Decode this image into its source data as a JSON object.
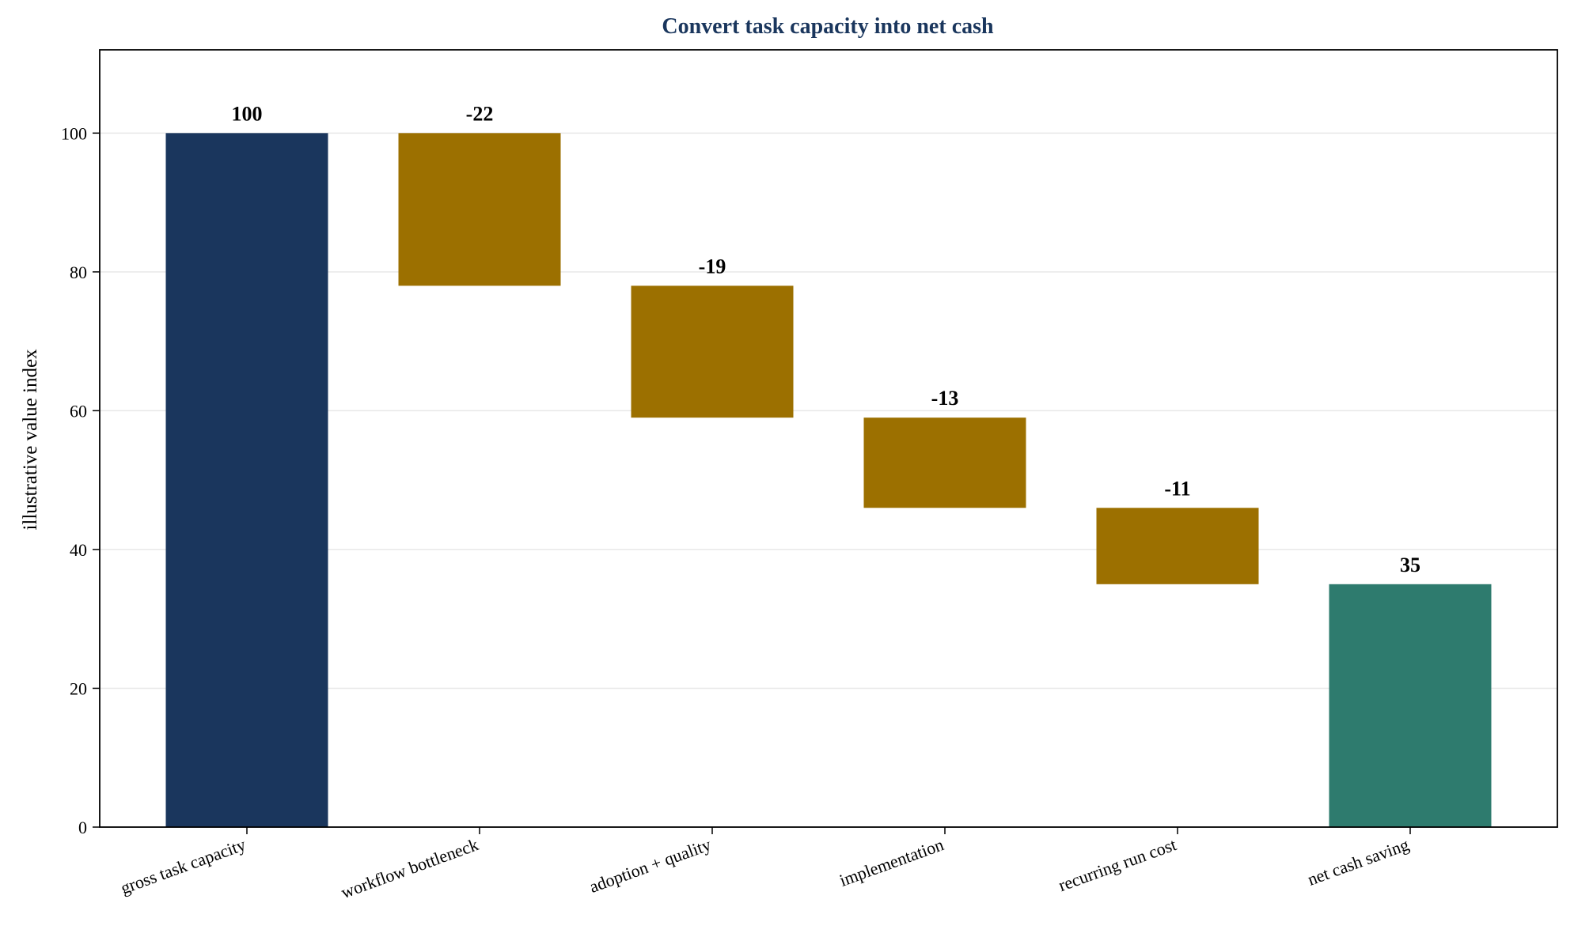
{
  "chart_data": {
    "type": "waterfall",
    "title": "Convert task capacity into net cash",
    "xlabel": "",
    "ylabel": "illustrative value index",
    "ylim": [
      0,
      112
    ],
    "yticks": [
      0,
      20,
      40,
      60,
      80,
      100
    ],
    "grid": "horizontal",
    "categories": [
      "gross task capacity",
      "workflow bottleneck",
      "adoption + quality",
      "implementation",
      "recurring run cost",
      "net cash saving"
    ],
    "bars": [
      {
        "category": "gross task capacity",
        "kind": "total",
        "start": 0,
        "end": 100,
        "label": "100"
      },
      {
        "category": "workflow bottleneck",
        "kind": "decrease",
        "start": 100,
        "end": 78,
        "label": "-22"
      },
      {
        "category": "adoption + quality",
        "kind": "decrease",
        "start": 78,
        "end": 59,
        "label": "-19"
      },
      {
        "category": "implementation",
        "kind": "decrease",
        "start": 59,
        "end": 46,
        "label": "-13"
      },
      {
        "category": "recurring run cost",
        "kind": "decrease",
        "start": 46,
        "end": 35,
        "label": "-11"
      },
      {
        "category": "net cash saving",
        "kind": "result",
        "start": 0,
        "end": 35,
        "label": "35"
      }
    ],
    "colors": {
      "total": "#1a365d",
      "decrease": "#9c7000",
      "result": "#2e7b6e",
      "title": "#1a365d",
      "grid": "#e8e8e8"
    }
  }
}
